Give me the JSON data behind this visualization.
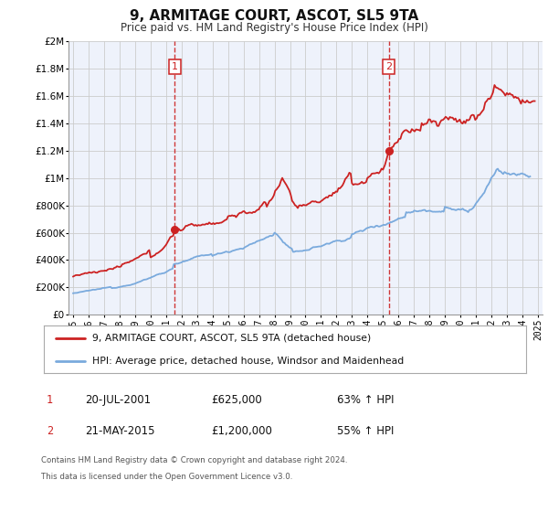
{
  "title": "9, ARMITAGE COURT, ASCOT, SL5 9TA",
  "subtitle": "Price paid vs. HM Land Registry's House Price Index (HPI)",
  "legend_line1": "9, ARMITAGE COURT, ASCOT, SL5 9TA (detached house)",
  "legend_line2": "HPI: Average price, detached house, Windsor and Maidenhead",
  "annotation1_date": "20-JUL-2001",
  "annotation1_price": "£625,000",
  "annotation1_hpi": "63% ↑ HPI",
  "annotation2_date": "21-MAY-2015",
  "annotation2_price": "£1,200,000",
  "annotation2_hpi": "55% ↑ HPI",
  "footer1": "Contains HM Land Registry data © Crown copyright and database right 2024.",
  "footer2": "This data is licensed under the Open Government Licence v3.0.",
  "sale1_x": 2001.55,
  "sale1_y": 625000,
  "sale2_x": 2015.38,
  "sale2_y": 1200000,
  "vline1_x": 2001.55,
  "vline2_x": 2015.38,
  "hpi_color": "#7aaadd",
  "property_color": "#cc2222",
  "vline_color": "#cc2222",
  "plot_bg_color": "#eef2fb",
  "grid_color": "#cccccc",
  "ylim": [
    0,
    2000000
  ],
  "xlim_start": 1994.7,
  "xlim_end": 2025.3,
  "yticks": [
    0,
    200000,
    400000,
    600000,
    800000,
    1000000,
    1200000,
    1400000,
    1600000,
    1800000,
    2000000
  ],
  "xticks": [
    1995,
    1996,
    1997,
    1998,
    1999,
    2000,
    2001,
    2002,
    2003,
    2004,
    2005,
    2006,
    2007,
    2008,
    2009,
    2010,
    2011,
    2012,
    2013,
    2014,
    2015,
    2016,
    2017,
    2018,
    2019,
    2020,
    2021,
    2022,
    2023,
    2024,
    2025
  ]
}
